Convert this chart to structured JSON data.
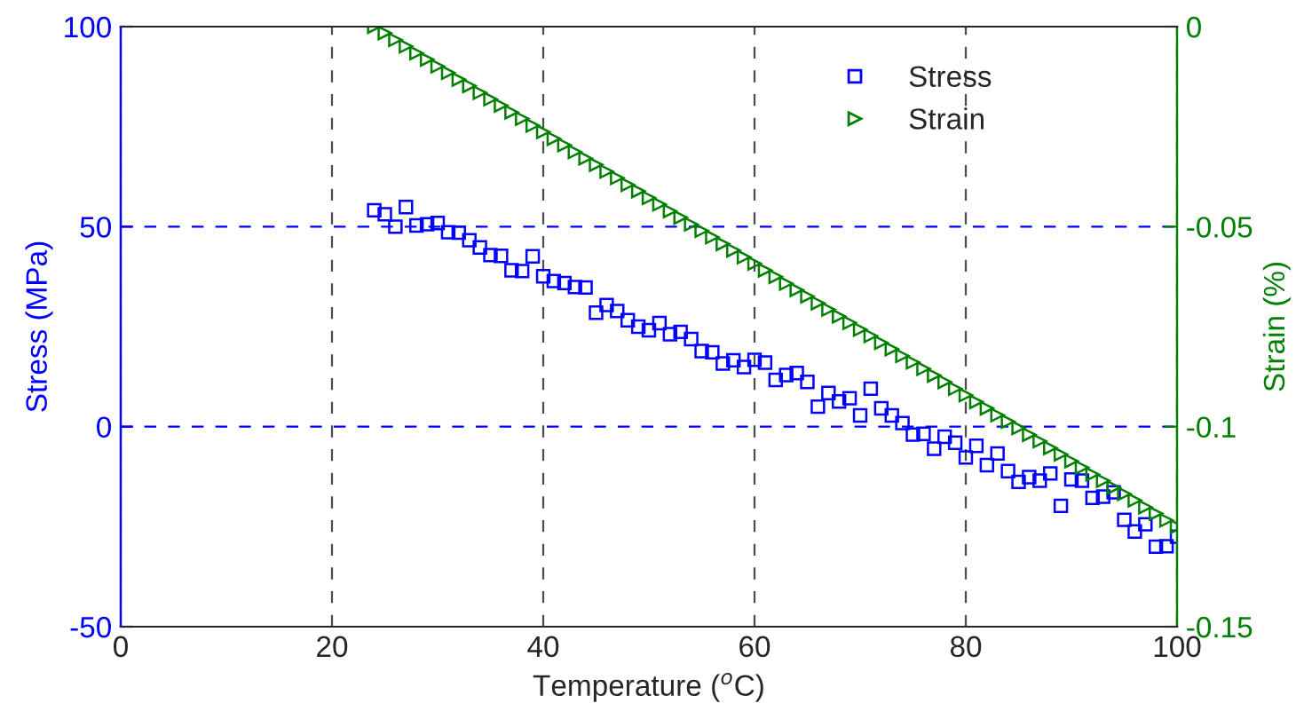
{
  "chart_data": {
    "type": "scatter",
    "xlabel": "Temperature ($^{o}$C)",
    "ylabel": "Stress (MPa)",
    "y2label": "Strain (%)",
    "xlim": [
      0,
      100
    ],
    "xticks": [
      0,
      20,
      40,
      60,
      80,
      100
    ],
    "ylim": [
      -50,
      100
    ],
    "yticks": [
      -50,
      0,
      50,
      100
    ],
    "y2lim": [
      -0.15,
      0
    ],
    "y2ticks": [
      -0.15,
      -0.1,
      -0.05,
      0
    ],
    "grid": true,
    "legend": "top right",
    "series": [
      {
        "name": "Stress",
        "color": "#0000ff",
        "marker": "square",
        "x": [
          24,
          25,
          26,
          27,
          28,
          29,
          30,
          31,
          32,
          33,
          34,
          35,
          36,
          37,
          38,
          39,
          40,
          41,
          42,
          43,
          44,
          45,
          46,
          47,
          48,
          49,
          50,
          51,
          52,
          53,
          54,
          55,
          56,
          57,
          58,
          59,
          60,
          61,
          62,
          63,
          64,
          65,
          66,
          67,
          68,
          69,
          70,
          71,
          72,
          73,
          74,
          75,
          76,
          77,
          78,
          79,
          80,
          81,
          82,
          83,
          84,
          85,
          86,
          87,
          88,
          89,
          90,
          91,
          92,
          93,
          94,
          95,
          96,
          97,
          98,
          99,
          100
        ],
        "values": [
          54.1,
          53.1,
          50.0,
          54.9,
          50.3,
          50.6,
          50.9,
          48.6,
          48.5,
          46.6,
          44.8,
          42.9,
          42.7,
          39.1,
          38.9,
          42.6,
          37.6,
          36.4,
          35.9,
          34.9,
          34.8,
          28.5,
          30.4,
          28.9,
          26.6,
          25.0,
          24.1,
          25.9,
          23.1,
          23.7,
          21.9,
          18.9,
          18.6,
          15.8,
          16.6,
          14.9,
          16.7,
          16.0,
          11.7,
          12.9,
          13.4,
          11.2,
          5.0,
          8.4,
          6.3,
          7.1,
          2.8,
          9.5,
          4.6,
          2.8,
          0.9,
          -2.0,
          -1.8,
          -5.5,
          -2.5,
          -4.0,
          -7.7,
          -4.8,
          -9.6,
          -6.7,
          -11.1,
          -13.8,
          -12.6,
          -13.5,
          -11.7,
          -19.8,
          -13.2,
          -13.5,
          -17.8,
          -17.5,
          -16.4,
          -23.3,
          -26.2,
          -24.4,
          -30.0,
          -29.9,
          -27.5
        ]
      },
      {
        "name": "Strain",
        "color": "#008000",
        "marker": "triangle",
        "axis": "y2",
        "x": [
          24,
          25,
          26,
          27,
          28,
          29,
          30,
          31,
          32,
          33,
          34,
          35,
          36,
          37,
          38,
          39,
          40,
          41,
          42,
          43,
          44,
          45,
          46,
          47,
          48,
          49,
          50,
          51,
          52,
          53,
          54,
          55,
          56,
          57,
          58,
          59,
          60,
          61,
          62,
          63,
          64,
          65,
          66,
          67,
          68,
          69,
          70,
          71,
          72,
          73,
          74,
          75,
          76,
          77,
          78,
          79,
          80,
          81,
          82,
          83,
          84,
          85,
          86,
          87,
          88,
          89,
          90,
          91,
          92,
          93,
          94,
          95,
          96,
          97,
          98,
          99,
          100
        ],
        "values": [
          0,
          -0.0016,
          -0.0033,
          -0.0049,
          -0.0066,
          -0.0082,
          -0.0099,
          -0.0115,
          -0.0132,
          -0.0148,
          -0.0165,
          -0.0181,
          -0.0197,
          -0.0214,
          -0.023,
          -0.0247,
          -0.0263,
          -0.028,
          -0.0296,
          -0.0313,
          -0.0329,
          -0.0345,
          -0.0362,
          -0.0378,
          -0.0395,
          -0.0411,
          -0.0428,
          -0.0444,
          -0.0461,
          -0.0477,
          -0.0494,
          -0.051,
          -0.0526,
          -0.0543,
          -0.0559,
          -0.0576,
          -0.0592,
          -0.0609,
          -0.0625,
          -0.0642,
          -0.0658,
          -0.0674,
          -0.0691,
          -0.0707,
          -0.0724,
          -0.074,
          -0.0757,
          -0.0773,
          -0.079,
          -0.0806,
          -0.0823,
          -0.0839,
          -0.0855,
          -0.0872,
          -0.0888,
          -0.0905,
          -0.0921,
          -0.0938,
          -0.0954,
          -0.0971,
          -0.0987,
          -0.1003,
          -0.102,
          -0.1036,
          -0.1053,
          -0.1069,
          -0.1086,
          -0.1102,
          -0.1119,
          -0.1135,
          -0.1152,
          -0.1168,
          -0.1184,
          -0.1201,
          -0.1217,
          -0.1234,
          -0.125
        ]
      }
    ]
  }
}
